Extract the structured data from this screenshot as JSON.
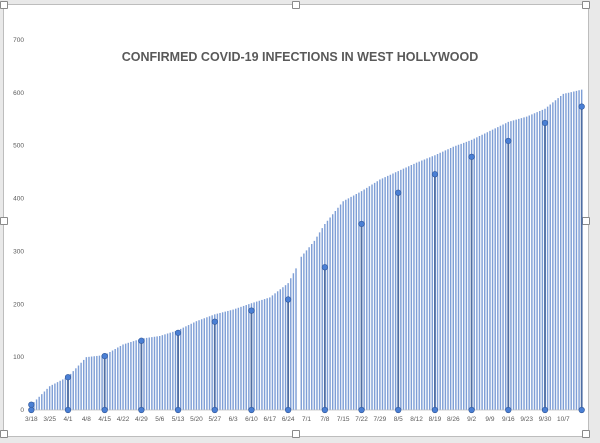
{
  "chart_data": {
    "type": "bar",
    "title": "CONFIRMED COVID-19 INFECTIONS IN WEST HOLLYWOOD",
    "xlabel": "",
    "ylabel": "",
    "ylim": [
      0,
      700
    ],
    "yticks": [
      0,
      100,
      200,
      300,
      400,
      500,
      600,
      700
    ],
    "x_tick_labels": [
      "3/18",
      "3/25",
      "4/1",
      "4/8",
      "4/15",
      "4/22",
      "4/29",
      "5/6",
      "5/13",
      "5/20",
      "5/27",
      "6/3",
      "6/10",
      "6/17",
      "6/24",
      "7/1",
      "7/8",
      "7/15",
      "7/22",
      "7/29",
      "8/5",
      "8/12",
      "8/19",
      "8/26",
      "9/2",
      "9/9",
      "9/16",
      "9/23",
      "9/30",
      "10/7"
    ],
    "anchors": [
      {
        "day": 0,
        "value": 10
      },
      {
        "day": 3,
        "value": 25
      },
      {
        "day": 7,
        "value": 45
      },
      {
        "day": 14,
        "value": 63
      },
      {
        "day": 21,
        "value": 100
      },
      {
        "day": 28,
        "value": 104
      },
      {
        "day": 35,
        "value": 124
      },
      {
        "day": 42,
        "value": 135
      },
      {
        "day": 49,
        "value": 140
      },
      {
        "day": 56,
        "value": 151
      },
      {
        "day": 63,
        "value": 168
      },
      {
        "day": 70,
        "value": 181
      },
      {
        "day": 77,
        "value": 190
      },
      {
        "day": 84,
        "value": 202
      },
      {
        "day": 91,
        "value": 213
      },
      {
        "day": 98,
        "value": 240
      },
      {
        "day": 101,
        "value": 268
      },
      {
        "day": 103,
        "value": 290
      },
      {
        "day": 108,
        "value": 320
      },
      {
        "day": 112,
        "value": 352
      },
      {
        "day": 119,
        "value": 395
      },
      {
        "day": 126,
        "value": 414
      },
      {
        "day": 133,
        "value": 436
      },
      {
        "day": 140,
        "value": 452
      },
      {
        "day": 147,
        "value": 468
      },
      {
        "day": 154,
        "value": 482
      },
      {
        "day": 161,
        "value": 498
      },
      {
        "day": 168,
        "value": 511
      },
      {
        "day": 175,
        "value": 528
      },
      {
        "day": 182,
        "value": 545
      },
      {
        "day": 189,
        "value": 555
      },
      {
        "day": 196,
        "value": 570
      },
      {
        "day": 203,
        "value": 598
      },
      {
        "day": 210,
        "value": 606
      }
    ],
    "missing_days": [
      102
    ],
    "highlights": [
      {
        "day": 0,
        "value": 10
      },
      {
        "day": 14,
        "value": 62
      },
      {
        "day": 28,
        "value": 102
      },
      {
        "day": 42,
        "value": 131
      },
      {
        "day": 56,
        "value": 146
      },
      {
        "day": 70,
        "value": 167
      },
      {
        "day": 84,
        "value": 188
      },
      {
        "day": 98,
        "value": 209
      },
      {
        "day": 112,
        "value": 270
      },
      {
        "day": 126,
        "value": 352
      },
      {
        "day": 140,
        "value": 411
      },
      {
        "day": 154,
        "value": 446
      },
      {
        "day": 168,
        "value": 479
      },
      {
        "day": 182,
        "value": 509
      },
      {
        "day": 196,
        "value": 543
      },
      {
        "day": 210,
        "value": 574
      }
    ],
    "bar_color": "#7f9fd6",
    "highlight_color": "#4f6ea3",
    "marker_color": "#4a7fd4",
    "grid": false,
    "legend": "none"
  }
}
